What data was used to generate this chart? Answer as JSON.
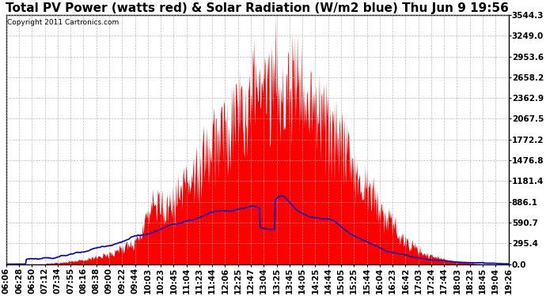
{
  "title": "Total PV Power (watts red) & Solar Radiation (W/m2 blue) Thu Jun 9 19:56",
  "copyright_text": "Copyright 2011 Cartronics.com",
  "y_max": 3544.3,
  "y_ticks": [
    0.0,
    295.4,
    590.7,
    886.1,
    1181.4,
    1476.8,
    1772.2,
    2067.5,
    2362.9,
    2658.2,
    2953.6,
    3249.0,
    3544.3
  ],
  "x_labels": [
    "06:06",
    "06:28",
    "06:50",
    "07:12",
    "07:34",
    "07:55",
    "08:16",
    "08:38",
    "09:00",
    "09:22",
    "09:44",
    "10:03",
    "10:23",
    "10:45",
    "11:04",
    "11:23",
    "11:44",
    "12:06",
    "12:25",
    "12:47",
    "13:04",
    "13:25",
    "13:45",
    "14:05",
    "14:25",
    "14:44",
    "15:05",
    "15:25",
    "15:44",
    "16:04",
    "16:23",
    "16:42",
    "17:03",
    "17:24",
    "17:44",
    "18:03",
    "18:23",
    "18:45",
    "19:04",
    "19:26"
  ],
  "background_color": "#ffffff",
  "plot_bg_color": "#ffffff",
  "grid_color": "#aaaaaa",
  "pv_color": "#ff0000",
  "solar_color": "#0000cc",
  "title_fontsize": 11,
  "tick_fontsize": 7.5,
  "copyright_fontsize": 6.5
}
